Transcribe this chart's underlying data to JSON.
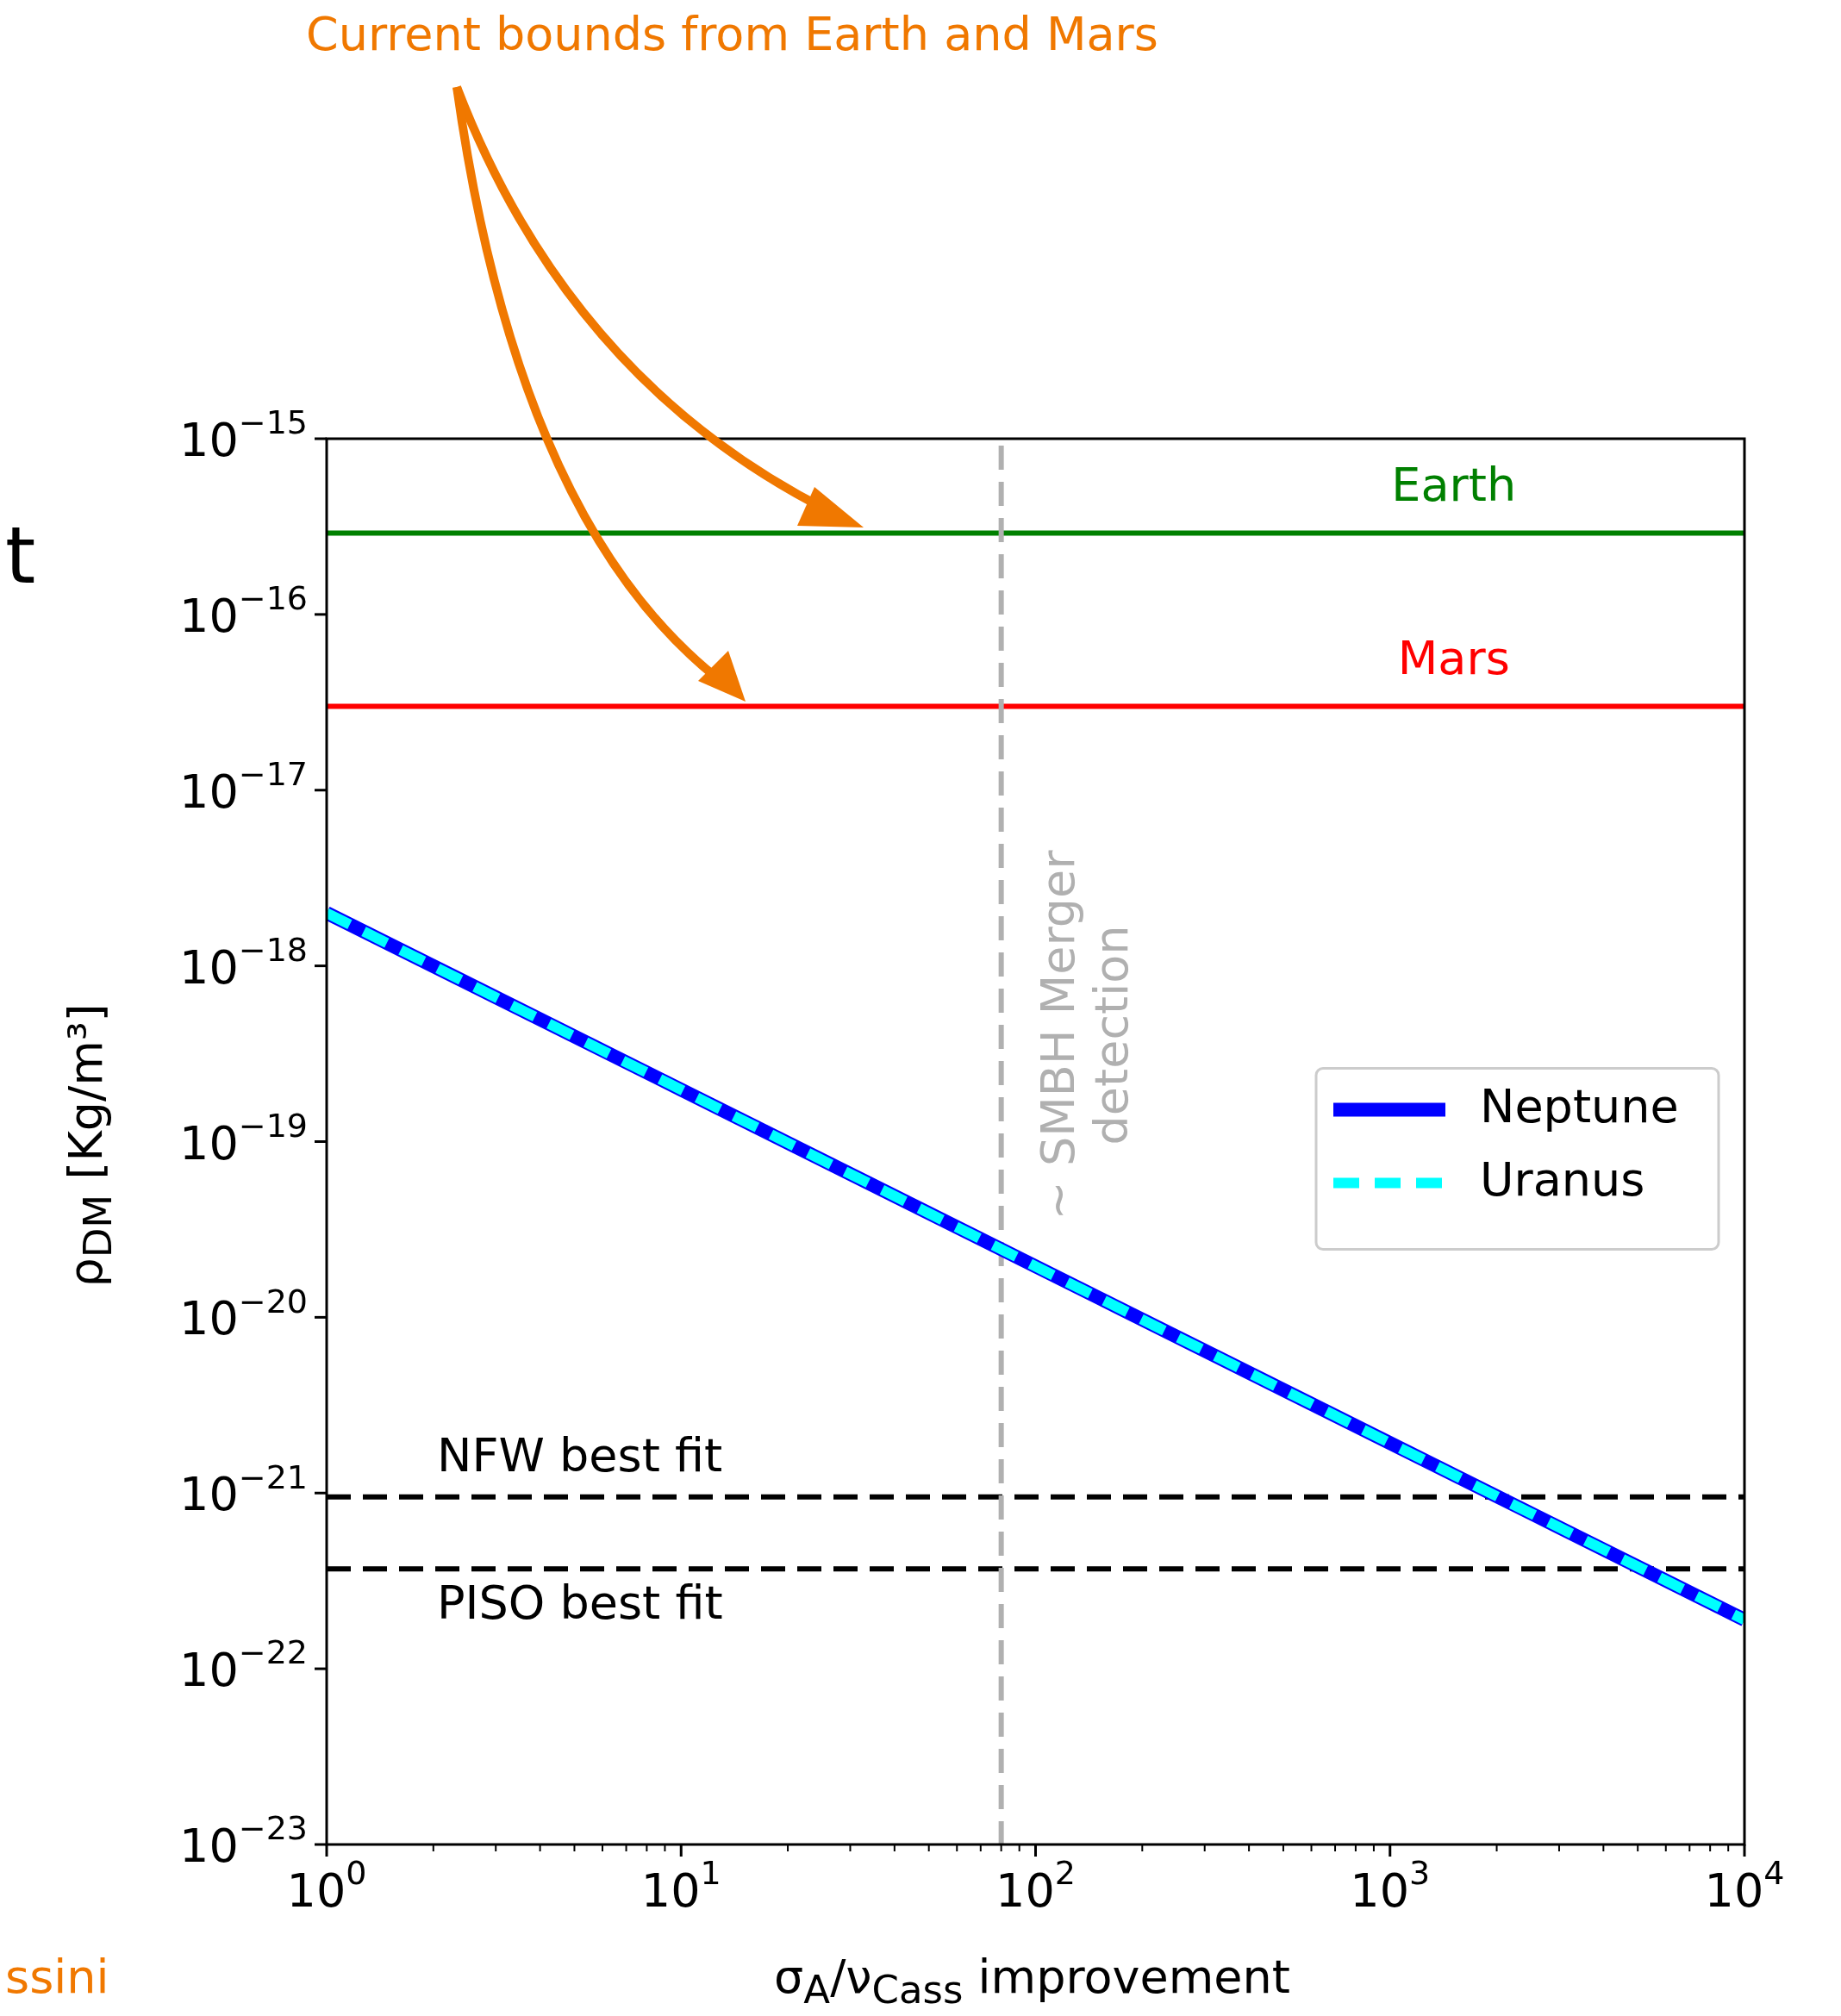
{
  "chart_data": {
    "type": "line",
    "xlabel": "σ$_{A}$/ν$_{Cass}$ improvement",
    "ylabel": "ρ$_{DM}$ [Kg/m³]",
    "log": "xy",
    "grid": false,
    "legend": "center right",
    "marker": "none",
    "xlim": [
      1,
      10000
    ],
    "ylim": [
      1e-23,
      1e-15
    ],
    "xticks": [
      {
        "value": 1,
        "label": "10$^{0}$"
      },
      {
        "value": 10,
        "label": "10$^{1}$"
      },
      {
        "value": 100,
        "label": "10$^{2}$"
      },
      {
        "value": 1000,
        "label": "10$^{3}$"
      },
      {
        "value": 10000,
        "label": "10$^{4}$"
      }
    ],
    "yticks": [
      {
        "value": 1e-23,
        "label": "10$^{−23}$"
      },
      {
        "value": 1e-22,
        "label": "10$^{−22}$"
      },
      {
        "value": 1e-21,
        "label": "10$^{−21}$"
      },
      {
        "value": 1e-20,
        "label": "10$^{−20}$"
      },
      {
        "value": 1e-19,
        "label": "10$^{−19}$"
      },
      {
        "value": 1e-18,
        "label": "10$^{−18}$"
      },
      {
        "value": 1e-17,
        "label": "10$^{−17}$"
      },
      {
        "value": 1e-16,
        "label": "10$^{−16}$"
      },
      {
        "value": 1e-15,
        "label": "10$^{−15}$"
      }
    ],
    "x": [
      1,
      10000
    ],
    "series": [
      {
        "name": "Neptune",
        "color": "#0000ff",
        "line_style": "solid",
        "values": [
          2e-18,
          1.9e-22
        ]
      },
      {
        "name": "Uranus",
        "color": "#00ffff",
        "line_style": "dashed",
        "values": [
          2e-18,
          1.9e-22
        ]
      }
    ],
    "ref_lines": [
      {
        "axis": "y",
        "value": 2.9e-16,
        "label": "Earth",
        "color": "#008000",
        "line_style": "solid"
      },
      {
        "axis": "y",
        "value": 3e-17,
        "label": "Mars",
        "color": "#ff0000",
        "line_style": "solid"
      },
      {
        "axis": "y",
        "value": 9.5e-22,
        "label": "NFW best fit",
        "color": "#000000",
        "line_style": "dashed"
      },
      {
        "axis": "y",
        "value": 3.7e-22,
        "label": "PISO best fit",
        "color": "#000000",
        "line_style": "dashed"
      },
      {
        "axis": "x",
        "value": 80,
        "label": "∼ SMBH Merger\ndetection",
        "color": "#b0b0b0",
        "line_style": "dashed"
      }
    ],
    "annotations": [
      "Current bounds from Earth and Mars",
      "t",
      "ssini"
    ]
  }
}
